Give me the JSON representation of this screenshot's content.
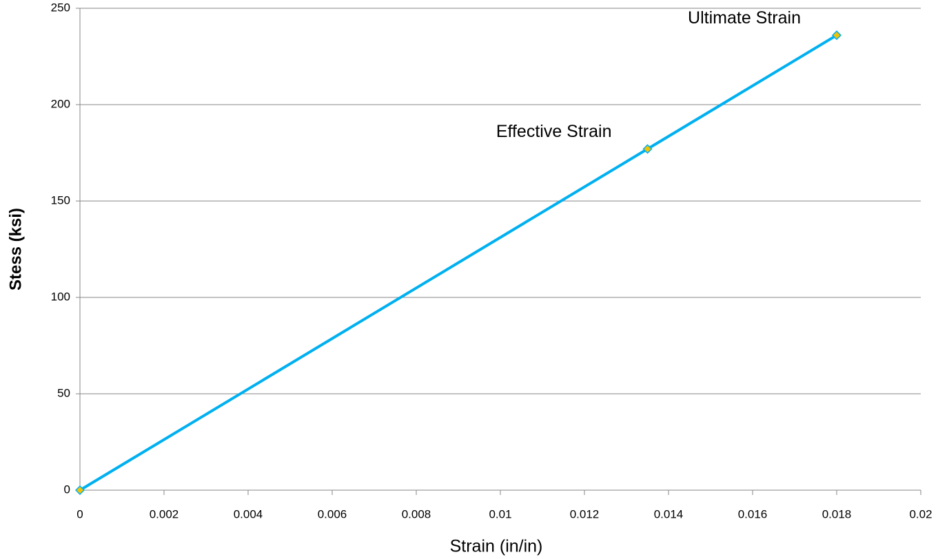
{
  "chart_data": {
    "type": "line",
    "x_label": "Strain (in/in)",
    "y_label": "Stess (ksi)",
    "x": [
      0,
      0.0135,
      0.018
    ],
    "series": [
      {
        "color": "#00b0f0",
        "marker_color": "#f5c200",
        "values": [
          0,
          177,
          236
        ]
      }
    ],
    "annotations": [
      "Effective Strain",
      "Ultimate Strain"
    ],
    "xlim": [
      0,
      0.02
    ],
    "xticks": [
      0,
      0.002,
      0.004,
      0.006,
      0.008,
      0.01,
      0.012,
      0.014,
      0.016,
      0.018,
      0.02
    ],
    "ylim": [
      0,
      250
    ],
    "yticks": [
      0,
      50,
      100,
      150,
      200,
      250
    ],
    "grid": true
  }
}
